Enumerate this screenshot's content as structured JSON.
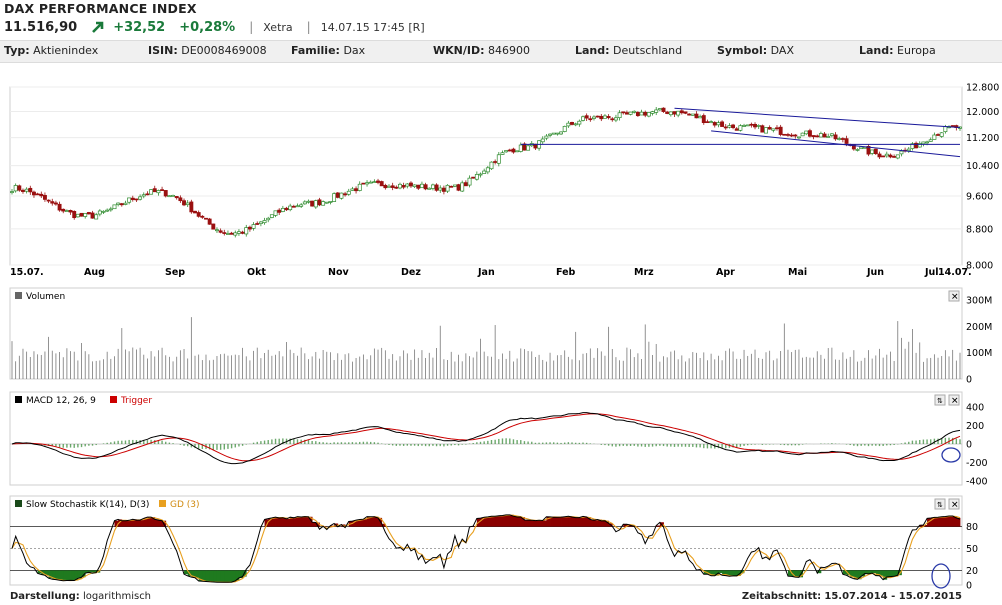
{
  "header": {
    "title": "DAX PERFORMANCE INDEX",
    "price": "11.516,90",
    "change": "+32,52",
    "change_pct": "+0,28%",
    "exchange": "Xetra",
    "timestamp": "14.07.15 17:45 [R]",
    "trend_icon": "arrow-up-right-icon",
    "up_color": "#1a7a3a"
  },
  "info": {
    "typ_label": "Typ:",
    "typ": "Aktienindex",
    "isin_label": "ISIN:",
    "isin": "DE0008469008",
    "familie_label": "Familie:",
    "familie": "Dax",
    "wkn_label": "WKN/ID:",
    "wkn": "846900",
    "land_label": "Land:",
    "land": "Deutschland",
    "symbol_label": "Symbol:",
    "symbol": "DAX",
    "region_label": "Land:",
    "region": "Europa"
  },
  "panels": {
    "volume_label": "Volumen",
    "macd_label": "MACD 12, 26, 9",
    "trigger_label": "Trigger",
    "stoch_label": "Slow Stochastik K(14), D(3)",
    "gd_label": "GD (3)"
  },
  "footer": {
    "display_label": "Darstellung:",
    "display_value": "logarithmisch",
    "period_label": "Zeitabschnitt:",
    "period_value": "15.07.2014 - 15.07.2015"
  },
  "chart_data": [
    {
      "type": "candlestick",
      "scale": "log",
      "ylim": [
        8000,
        12800
      ],
      "y_ticks": [
        "12.800",
        "12.000",
        "11.200",
        "10.400",
        "9.600",
        "8.800",
        "8.000"
      ],
      "x_ticks": [
        "15.07.",
        "Aug",
        "Sep",
        "Okt",
        "Nov",
        "Dez",
        "Jan",
        "Feb",
        "Mrz",
        "Apr",
        "Mai",
        "Jun",
        "Jul",
        "14.07."
      ],
      "monthly_close": [
        {
          "x": "15.07.",
          "y": 9800
        },
        {
          "x": "Aug",
          "y": 9100
        },
        {
          "x": "Sep",
          "y": 9700
        },
        {
          "x": "Okt",
          "y": 8700
        },
        {
          "x": "Nov",
          "y": 9400
        },
        {
          "x": "Dez",
          "y": 9900
        },
        {
          "x": "Jan",
          "y": 9800
        },
        {
          "x": "Feb",
          "y": 10900
        },
        {
          "x": "Mrz",
          "y": 11800
        },
        {
          "x": "Apr",
          "y": 12000
        },
        {
          "x": "Mai",
          "y": 11500
        },
        {
          "x": "Jun",
          "y": 11300
        },
        {
          "x": "Jul",
          "y": 10700
        },
        {
          "x": "14.07.",
          "y": 11517
        }
      ],
      "colors": {
        "up": "#2e8b2e",
        "down": "#9a1010",
        "channel": "#1a1a9a"
      }
    },
    {
      "type": "bar",
      "name": "Volumen",
      "y_ticks": [
        "300M",
        "200M",
        "100M",
        "0"
      ],
      "ylim": [
        0,
        300
      ]
    },
    {
      "type": "line",
      "name": "MACD",
      "series": [
        {
          "name": "MACD 12, 26, 9",
          "color": "#000000"
        },
        {
          "name": "Trigger",
          "color": "#cc0000"
        }
      ],
      "y_ticks": [
        "400",
        "200",
        "0",
        "-200",
        "-400"
      ],
      "ylim": [
        -400,
        400
      ]
    },
    {
      "type": "line",
      "name": "Slow Stochastik",
      "series": [
        {
          "name": "K(14)",
          "color": "#000000"
        },
        {
          "name": "GD (3)",
          "color": "#e8a020"
        }
      ],
      "y_ticks": [
        "80",
        "50",
        "20",
        "0"
      ],
      "ylim": [
        0,
        100
      ],
      "fill_colors": {
        "overbought": "#8b0000",
        "oversold": "#1f7a1f"
      }
    }
  ]
}
